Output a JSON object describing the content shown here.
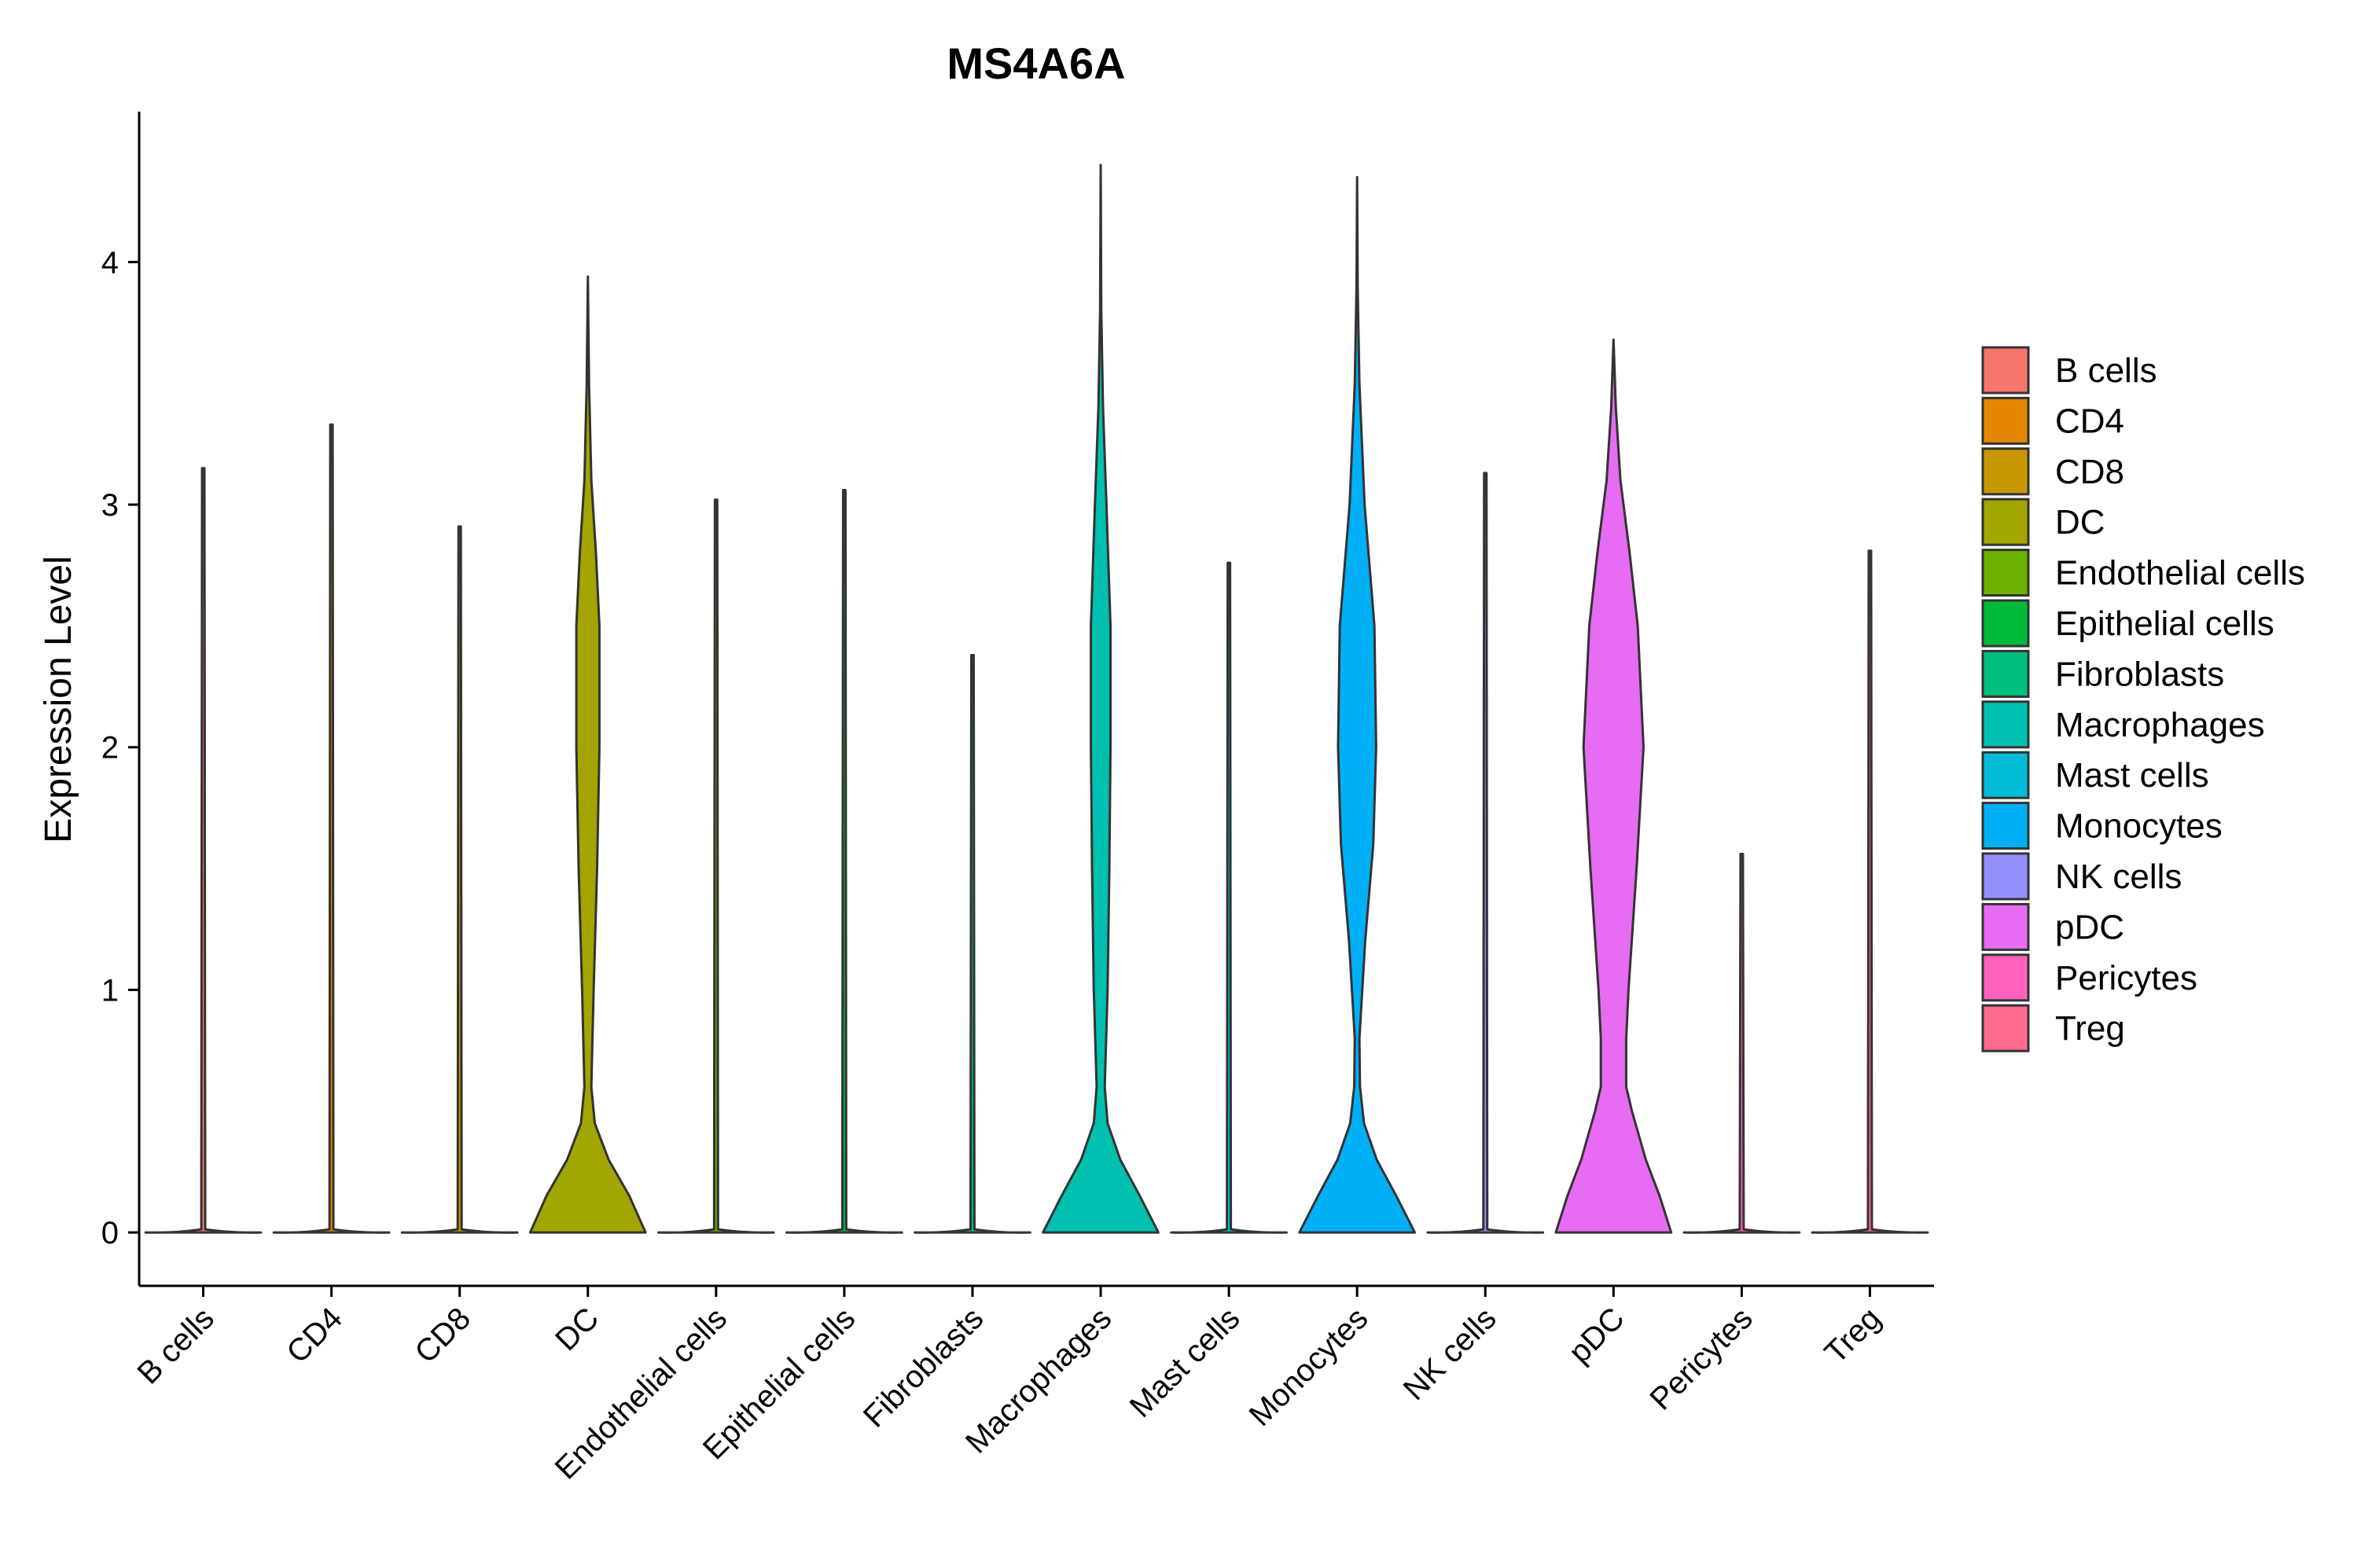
{
  "chart_data": {
    "type": "violin",
    "title": "MS4A6A",
    "xlabel": "",
    "ylabel": "Expression Level",
    "ylim": [
      -0.22,
      4.62
    ],
    "yticks": [
      "0",
      "1",
      "2",
      "3",
      "4"
    ],
    "grid": false,
    "legend_position": "right",
    "categories": [
      "B cells",
      "CD4",
      "CD8",
      "DC",
      "Endothelial cells",
      "Epithelial cells",
      "Fibroblasts",
      "Macrophages",
      "Mast cells",
      "Monocytes",
      "NK cells",
      "pDC",
      "Pericytes",
      "Treg"
    ],
    "colors": [
      "#F8766D",
      "#E58700",
      "#C99800",
      "#A3A500",
      "#6BB100",
      "#00BA38",
      "#00BF7D",
      "#00C0AF",
      "#00BCD8",
      "#00B0F6",
      "#9590FF",
      "#E76BF3",
      "#FF62BC",
      "#FF6C91"
    ],
    "max_values": [
      3.15,
      3.33,
      2.91,
      3.94,
      3.02,
      3.06,
      2.38,
      4.4,
      2.76,
      4.35,
      3.13,
      3.68,
      1.56,
      2.81
    ],
    "density_profiles": {
      "DC": [
        [
          0,
          1.0
        ],
        [
          0.15,
          0.72
        ],
        [
          0.3,
          0.36
        ],
        [
          0.45,
          0.12
        ],
        [
          0.6,
          0.06
        ],
        [
          1.0,
          0.1
        ],
        [
          1.5,
          0.16
        ],
        [
          2.0,
          0.2
        ],
        [
          2.5,
          0.2
        ],
        [
          2.8,
          0.14
        ],
        [
          3.1,
          0.06
        ],
        [
          3.5,
          0.02
        ],
        [
          3.94,
          0
        ]
      ],
      "Macrophages": [
        [
          0,
          1.0
        ],
        [
          0.15,
          0.68
        ],
        [
          0.3,
          0.34
        ],
        [
          0.45,
          0.12
        ],
        [
          0.6,
          0.07
        ],
        [
          1.0,
          0.12
        ],
        [
          1.5,
          0.15
        ],
        [
          2.0,
          0.17
        ],
        [
          2.5,
          0.17
        ],
        [
          3.0,
          0.1
        ],
        [
          3.4,
          0.04
        ],
        [
          3.8,
          0.01
        ],
        [
          4.4,
          0
        ]
      ],
      "Monocytes": [
        [
          0,
          1.0
        ],
        [
          0.15,
          0.68
        ],
        [
          0.3,
          0.34
        ],
        [
          0.45,
          0.12
        ],
        [
          0.6,
          0.05
        ],
        [
          0.8,
          0.04
        ],
        [
          1.2,
          0.14
        ],
        [
          1.6,
          0.28
        ],
        [
          2.0,
          0.33
        ],
        [
          2.5,
          0.3
        ],
        [
          3.0,
          0.13
        ],
        [
          3.5,
          0.04
        ],
        [
          3.9,
          0.01
        ],
        [
          4.35,
          0
        ]
      ],
      "pDC": [
        [
          0,
          1.0
        ],
        [
          0.15,
          0.8
        ],
        [
          0.3,
          0.56
        ],
        [
          0.5,
          0.32
        ],
        [
          0.6,
          0.22
        ],
        [
          0.8,
          0.22
        ],
        [
          1.0,
          0.26
        ],
        [
          1.5,
          0.4
        ],
        [
          2.0,
          0.52
        ],
        [
          2.5,
          0.42
        ],
        [
          2.8,
          0.28
        ],
        [
          3.1,
          0.12
        ],
        [
          3.4,
          0.04
        ],
        [
          3.68,
          0
        ]
      ]
    }
  }
}
